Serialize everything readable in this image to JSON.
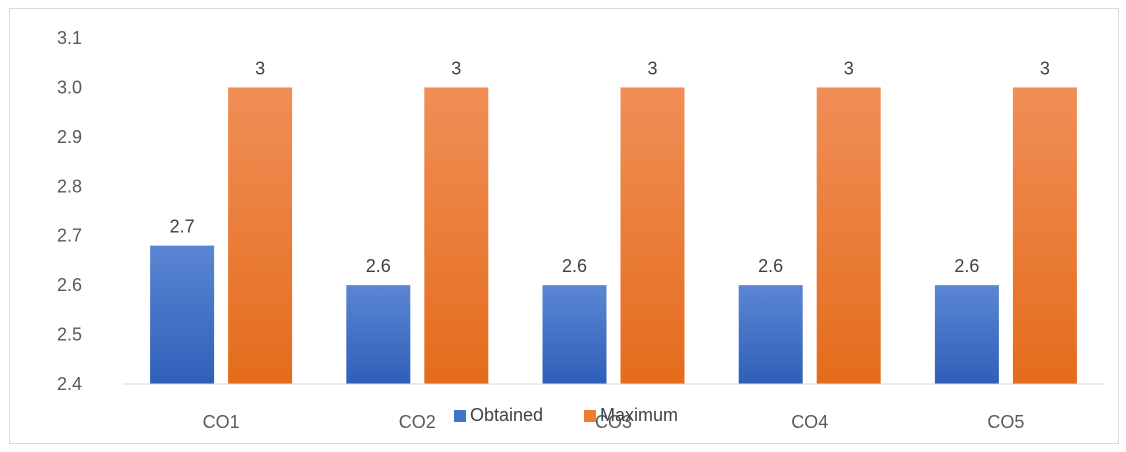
{
  "chart_data": {
    "type": "bar",
    "categories": [
      "CO1",
      "CO2",
      "CO3",
      "CO4",
      "CO5"
    ],
    "series": [
      {
        "name": "Obtained",
        "values": [
          2.68,
          2.6,
          2.6,
          2.6,
          2.6
        ],
        "labels": [
          "2.7",
          "2.6",
          "2.6",
          "2.6",
          "2.6"
        ],
        "color": "#4472C4"
      },
      {
        "name": "Maximum",
        "values": [
          3,
          3,
          3,
          3,
          3
        ],
        "labels": [
          "3",
          "3",
          "3",
          "3",
          "3"
        ],
        "color": "#ED7D31"
      }
    ],
    "y_ticks": [
      "2.4",
      "2.5",
      "2.6",
      "2.7",
      "2.8",
      "2.9",
      "3.0",
      "3.1"
    ],
    "ylim": [
      2.4,
      3.1
    ],
    "grid": false,
    "legend_position": "bottom"
  }
}
